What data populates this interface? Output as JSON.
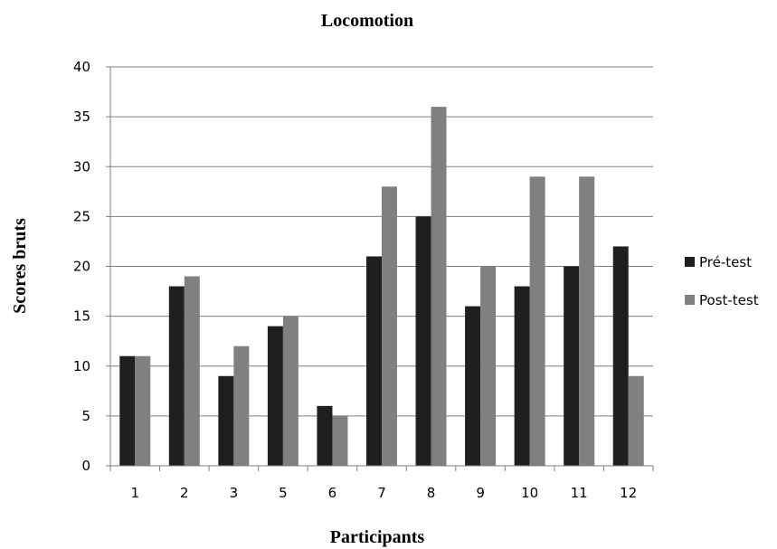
{
  "chart_data": {
    "type": "bar",
    "title": "Locomotion",
    "xlabel": "Participants",
    "ylabel": "Scores bruts",
    "categories": [
      "1",
      "2",
      "3",
      "5",
      "6",
      "7",
      "8",
      "9",
      "10",
      "11",
      "12"
    ],
    "series": [
      {
        "name": "Pré-test",
        "color": "#1f1f1f",
        "values": [
          11,
          18,
          9,
          14,
          6,
          21,
          25,
          16,
          18,
          20,
          22
        ]
      },
      {
        "name": "Post-test",
        "color": "#808080",
        "values": [
          11,
          19,
          12,
          15,
          5,
          28,
          36,
          20,
          29,
          29,
          9
        ]
      }
    ],
    "ylim": [
      0,
      40
    ],
    "yticks": [
      0,
      5,
      10,
      15,
      20,
      25,
      30,
      35,
      40
    ],
    "grid": true,
    "legend_position": "right"
  }
}
